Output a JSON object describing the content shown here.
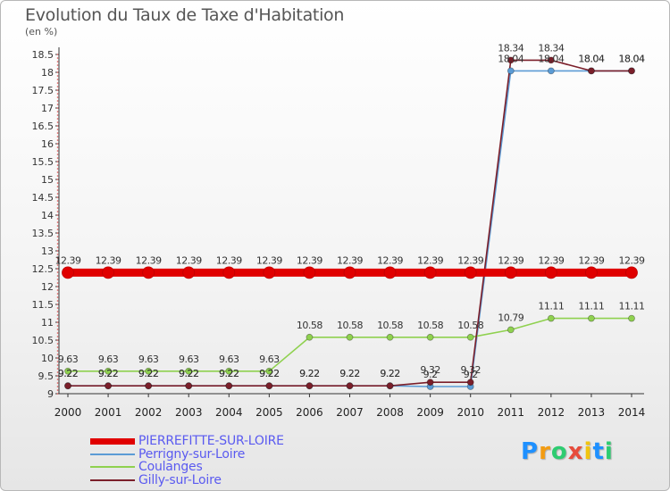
{
  "title": "Evolution du Taux de Taxe d'Habitation",
  "unit": "(en %)",
  "chart_data": {
    "type": "line",
    "title": "Evolution du Taux de Taxe d'Habitation",
    "ylabel": "(en %)",
    "xlabel": "",
    "x": [
      "2000",
      "2001",
      "2002",
      "2003",
      "2004",
      "2005",
      "2006",
      "2007",
      "2008",
      "2009",
      "2010",
      "2011",
      "2012",
      "2013",
      "2014"
    ],
    "ylim": [
      9,
      18.5
    ],
    "yticks": [
      "9",
      "9.5",
      "10",
      "10.5",
      "11",
      "11.5",
      "12",
      "12.5",
      "13",
      "13.5",
      "14",
      "14.5",
      "15",
      "15.5",
      "16",
      "16.5",
      "17",
      "17.5",
      "18",
      "18.5"
    ],
    "grid": false,
    "legend_position": "bottom-left",
    "series": [
      {
        "name": "PIERREFITTE-SUR-LOIRE",
        "color": "#e00000",
        "values": [
          12.39,
          12.39,
          12.39,
          12.39,
          12.39,
          12.39,
          12.39,
          12.39,
          12.39,
          12.39,
          12.39,
          12.39,
          12.39,
          12.39,
          12.39
        ],
        "labels": [
          "12.39",
          "12.39",
          "12.39",
          "12.39",
          "12.39",
          "12.39",
          "12.39",
          "12.39",
          "12.39",
          "12.39",
          "12.39",
          "12.39",
          "12.39",
          "12.39",
          "12.39"
        ]
      },
      {
        "name": "Perrigny-sur-Loire",
        "color": "#5b9bd5",
        "values": [
          9.22,
          9.22,
          9.22,
          9.22,
          9.22,
          9.22,
          9.22,
          9.22,
          9.22,
          9.2,
          9.2,
          18.04,
          18.04,
          18.04,
          18.04
        ],
        "labels": [
          "9.22",
          "9.22",
          "9.22",
          "9.22",
          "9.22",
          "9.22",
          "9.22",
          "9.22",
          "9.22",
          "9.2",
          "9.2",
          "18.04",
          "18.04",
          "18.04",
          "18.04"
        ]
      },
      {
        "name": "Coulanges",
        "color": "#8fd14f",
        "values": [
          9.63,
          9.63,
          9.63,
          9.63,
          9.63,
          9.63,
          10.58,
          10.58,
          10.58,
          10.58,
          10.58,
          10.79,
          11.11,
          11.11,
          11.11
        ],
        "labels": [
          "9.63",
          "9.63",
          "9.63",
          "9.63",
          "9.63",
          "9.63",
          "10.58",
          "10.58",
          "10.58",
          "10.58",
          "10.58",
          "10.79",
          "11.11",
          "11.11",
          "11.11"
        ]
      },
      {
        "name": "Gilly-sur-Loire",
        "color": "#7b1f2a",
        "values": [
          9.22,
          9.22,
          9.22,
          9.22,
          9.22,
          9.22,
          9.22,
          9.22,
          9.22,
          9.32,
          9.32,
          18.34,
          18.34,
          18.04,
          18.04
        ],
        "labels": [
          "9.22",
          "9.22",
          "9.22",
          "9.22",
          "9.22",
          "9.22",
          "9.22",
          "9.22",
          "9.22",
          "9.32",
          "9.32",
          "18.34",
          "18.34",
          "18.04",
          "18.04"
        ]
      }
    ]
  },
  "legend": [
    {
      "label": "PIERREFITTE-SUR-LOIRE",
      "color": "#e00000"
    },
    {
      "label": "Perrigny-sur-Loire",
      "color": "#5b9bd5"
    },
    {
      "label": "Coulanges",
      "color": "#8fd14f"
    },
    {
      "label": "Gilly-sur-Loire",
      "color": "#7b1f2a"
    }
  ],
  "logo": {
    "letters": [
      "P",
      "r",
      "o",
      "x",
      "i",
      "t",
      "i"
    ],
    "colors": [
      "#1e90ff",
      "#f39c12",
      "#2ecc71",
      "#e74c3c",
      "#f1c40f",
      "#1e90ff",
      "#2ecc71"
    ]
  }
}
